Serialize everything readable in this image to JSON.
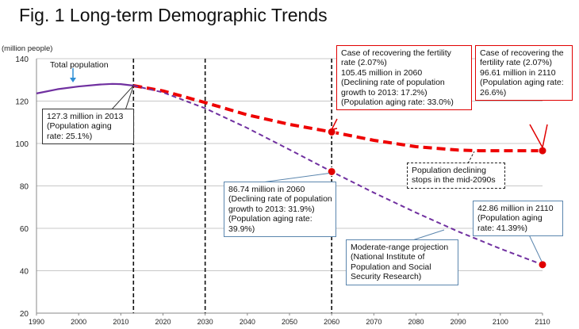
{
  "title": "Fig. 1 Long-term Demographic Trends",
  "y_unit_label": "(million people)",
  "colors": {
    "actual": "#7030a0",
    "fertility_recovery": "#ee0000",
    "moderate_projection": "#7030a0",
    "callout_red_border": "#e00000",
    "callout_blue_border": "#5b86ae"
  },
  "callouts": {
    "total_population": "Total population",
    "y2013": [
      "127.3 million in 2013",
      "(Population aging",
      "rate: 25.1%)"
    ],
    "fert2060": [
      "Case of recovering the fertility",
      "rate (2.07%)",
      "105.45 million in 2060",
      "(Declining rate of population",
      "growth to 2013: 17.2%)",
      "(Population aging rate: 33.0%)"
    ],
    "fert2110": [
      "Case of recovering the",
      "fertility rate (2.07%)",
      "96.61 million in 2110",
      "(Population aging rate:",
      "26.6%)"
    ],
    "decline_stop": [
      "Population declining",
      "stops in the mid-2090s"
    ],
    "mod2060": [
      "86.74 million in 2060",
      "(Declining rate of population",
      "growth to 2013: 31.9%)",
      "(Population aging rate:",
      "39.9%)"
    ],
    "mod2110": [
      "42.86 million in 2110",
      "(Population aging",
      "rate: 41.39%)"
    ],
    "moderate": [
      "Moderate-range projection",
      "(National Institute of",
      "Population and Social",
      "Security Research)"
    ]
  },
  "chart_data": {
    "type": "line",
    "title": "Fig. 1 Long-term Demographic Trends",
    "ylabel": "(million people)",
    "xlim": [
      1990,
      2110
    ],
    "ylim": [
      20,
      140
    ],
    "x_ticks": [
      1990,
      2000,
      2010,
      2020,
      2030,
      2040,
      2050,
      2060,
      2070,
      2080,
      2090,
      2100,
      2110
    ],
    "y_ticks": [
      20,
      40,
      60,
      80,
      100,
      120,
      140
    ],
    "grid": true,
    "vertical_markers": [
      2013,
      2030,
      2060
    ],
    "series": [
      {
        "name": "Total population",
        "style": "solid",
        "x": [
          1990,
          1995,
          2000,
          2005,
          2008,
          2010,
          2013
        ],
        "y": [
          123.6,
          125.6,
          126.9,
          127.8,
          128.1,
          128.0,
          127.3
        ]
      },
      {
        "name": "Case of recovering the fertility rate (2.07%)",
        "style": "dashed-thick",
        "x": [
          2013,
          2020,
          2030,
          2040,
          2050,
          2060,
          2070,
          2080,
          2090,
          2095,
          2100,
          2110
        ],
        "y": [
          127.3,
          124.8,
          119.3,
          113.5,
          109.0,
          105.45,
          101.5,
          98.5,
          96.9,
          96.6,
          96.6,
          96.61
        ]
      },
      {
        "name": "Moderate-range projection",
        "style": "dashed",
        "x": [
          2013,
          2020,
          2030,
          2040,
          2050,
          2060,
          2070,
          2080,
          2090,
          2100,
          2110
        ],
        "y": [
          127.3,
          124.1,
          116.6,
          107.3,
          97.1,
          86.74,
          76.8,
          67.4,
          58.5,
          50.4,
          42.86
        ]
      }
    ],
    "highlight_points": [
      {
        "x": 2060,
        "y": 105.45
      },
      {
        "x": 2110,
        "y": 96.61
      },
      {
        "x": 2060,
        "y": 86.74
      },
      {
        "x": 2110,
        "y": 42.86
      }
    ]
  }
}
